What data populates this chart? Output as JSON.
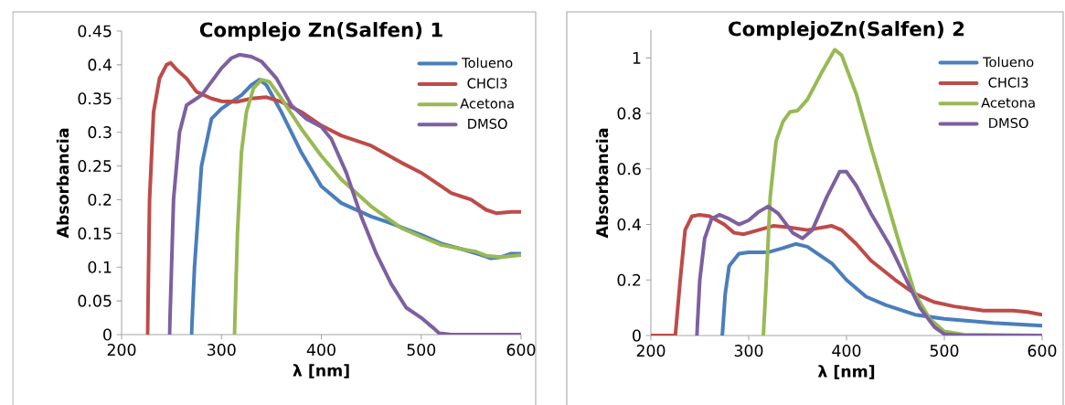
{
  "chart_data": [
    {
      "type": "line",
      "title": "Complejo Zn(Salfen) 1",
      "xlabel": "λ [nm]",
      "ylabel": "Absorbancia",
      "xlim": [
        200,
        600
      ],
      "ylim": [
        0,
        0.45
      ],
      "xticks": [
        200,
        300,
        400,
        500,
        600
      ],
      "yticks": [
        0,
        0.05,
        0.1,
        0.15,
        0.2,
        0.25,
        0.3,
        0.35,
        0.4,
        0.45
      ],
      "grid": false,
      "legend": "top right",
      "marker": "none",
      "line_style": "solid",
      "series": [
        {
          "name": "Tolueno",
          "color": "#4a7ebb",
          "x": [
            270,
            273,
            280,
            290,
            300,
            310,
            320,
            330,
            338,
            345,
            360,
            380,
            400,
            420,
            450,
            470,
            500,
            520,
            540,
            560,
            570,
            580,
            590,
            600
          ],
          "values": [
            0,
            0.1,
            0.25,
            0.32,
            0.335,
            0.345,
            0.355,
            0.37,
            0.378,
            0.37,
            0.33,
            0.27,
            0.22,
            0.195,
            0.175,
            0.165,
            0.148,
            0.135,
            0.127,
            0.118,
            0.113,
            0.115,
            0.12,
            0.12
          ]
        },
        {
          "name": "CHCl3",
          "color": "#be4b48",
          "x": [
            226,
            228,
            232,
            238,
            245,
            249,
            255,
            265,
            275,
            290,
            300,
            315,
            330,
            345,
            360,
            380,
            400,
            420,
            450,
            480,
            500,
            520,
            530,
            550,
            565,
            575,
            590,
            600
          ],
          "values": [
            0,
            0.2,
            0.33,
            0.38,
            0.4,
            0.403,
            0.393,
            0.38,
            0.36,
            0.35,
            0.346,
            0.345,
            0.35,
            0.352,
            0.345,
            0.33,
            0.31,
            0.295,
            0.28,
            0.255,
            0.24,
            0.22,
            0.21,
            0.2,
            0.185,
            0.18,
            0.182,
            0.182
          ]
        },
        {
          "name": "Acetona",
          "color": "#98b954",
          "x": [
            313,
            316,
            320,
            325,
            332,
            340,
            348,
            360,
            380,
            400,
            420,
            450,
            480,
            500,
            520,
            540,
            555,
            565,
            580,
            600
          ],
          "values": [
            0,
            0.15,
            0.27,
            0.33,
            0.365,
            0.378,
            0.375,
            0.35,
            0.305,
            0.265,
            0.23,
            0.19,
            0.158,
            0.145,
            0.133,
            0.127,
            0.123,
            0.117,
            0.115,
            0.118
          ]
        },
        {
          "name": "DMSO",
          "color": "#7d60a0",
          "x": [
            248,
            252,
            258,
            265,
            272,
            280,
            290,
            300,
            310,
            318,
            330,
            340,
            355,
            370,
            385,
            400,
            410,
            425,
            440,
            455,
            470,
            485,
            500,
            512,
            518,
            530,
            560,
            600
          ],
          "values": [
            0,
            0.2,
            0.3,
            0.34,
            0.347,
            0.355,
            0.375,
            0.395,
            0.41,
            0.415,
            0.412,
            0.405,
            0.38,
            0.34,
            0.32,
            0.308,
            0.29,
            0.24,
            0.175,
            0.12,
            0.075,
            0.04,
            0.025,
            0.01,
            0.002,
            0,
            0,
            0
          ]
        }
      ]
    },
    {
      "type": "line",
      "title": "ComplejoZn(Salfen) 2",
      "xlabel": "λ [nm]",
      "ylabel": "Absorbancia",
      "xlim": [
        200,
        600
      ],
      "ylim": [
        0,
        1.1
      ],
      "xticks": [
        200,
        300,
        400,
        500,
        600
      ],
      "yticks": [
        0,
        0.2,
        0.4,
        0.6,
        0.8,
        1
      ],
      "grid": false,
      "legend": "top right",
      "marker": "none",
      "line_style": "solid",
      "series": [
        {
          "name": "Tolueno",
          "color": "#4a7ebb",
          "x": [
            273,
            276,
            280,
            290,
            300,
            320,
            335,
            348,
            360,
            385,
            400,
            420,
            440,
            470,
            500,
            550,
            600
          ],
          "values": [
            0,
            0.15,
            0.25,
            0.295,
            0.3,
            0.3,
            0.315,
            0.33,
            0.32,
            0.26,
            0.2,
            0.14,
            0.11,
            0.075,
            0.06,
            0.045,
            0.035
          ]
        },
        {
          "name": "CHCl3",
          "color": "#be4b48",
          "x": [
            200,
            225,
            230,
            235,
            242,
            250,
            260,
            275,
            285,
            295,
            310,
            325,
            340,
            360,
            385,
            395,
            410,
            425,
            450,
            470,
            490,
            510,
            540,
            570,
            585,
            600
          ],
          "values": [
            0,
            0,
            0.2,
            0.38,
            0.43,
            0.435,
            0.43,
            0.4,
            0.37,
            0.365,
            0.38,
            0.395,
            0.39,
            0.38,
            0.395,
            0.38,
            0.33,
            0.27,
            0.2,
            0.15,
            0.12,
            0.105,
            0.09,
            0.09,
            0.085,
            0.075
          ]
        },
        {
          "name": "Acetona",
          "color": "#98b954",
          "x": [
            315,
            318,
            322,
            328,
            335,
            342,
            350,
            360,
            375,
            388,
            395,
            410,
            425,
            440,
            455,
            470,
            485,
            500,
            520,
            600
          ],
          "values": [
            0,
            0.2,
            0.5,
            0.7,
            0.77,
            0.805,
            0.81,
            0.85,
            0.95,
            1.03,
            1.01,
            0.87,
            0.68,
            0.5,
            0.32,
            0.15,
            0.06,
            0.015,
            0.003,
            0
          ]
        },
        {
          "name": "DMSO",
          "color": "#7d60a0",
          "x": [
            247,
            250,
            255,
            262,
            270,
            280,
            290,
            300,
            310,
            320,
            330,
            345,
            355,
            365,
            380,
            393,
            400,
            410,
            425,
            445,
            460,
            475,
            490,
            500,
            520,
            600
          ],
          "values": [
            0,
            0.2,
            0.35,
            0.42,
            0.435,
            0.42,
            0.4,
            0.415,
            0.445,
            0.465,
            0.44,
            0.37,
            0.35,
            0.38,
            0.5,
            0.59,
            0.59,
            0.54,
            0.44,
            0.32,
            0.21,
            0.1,
            0.03,
            0.005,
            0,
            0
          ]
        }
      ]
    }
  ]
}
